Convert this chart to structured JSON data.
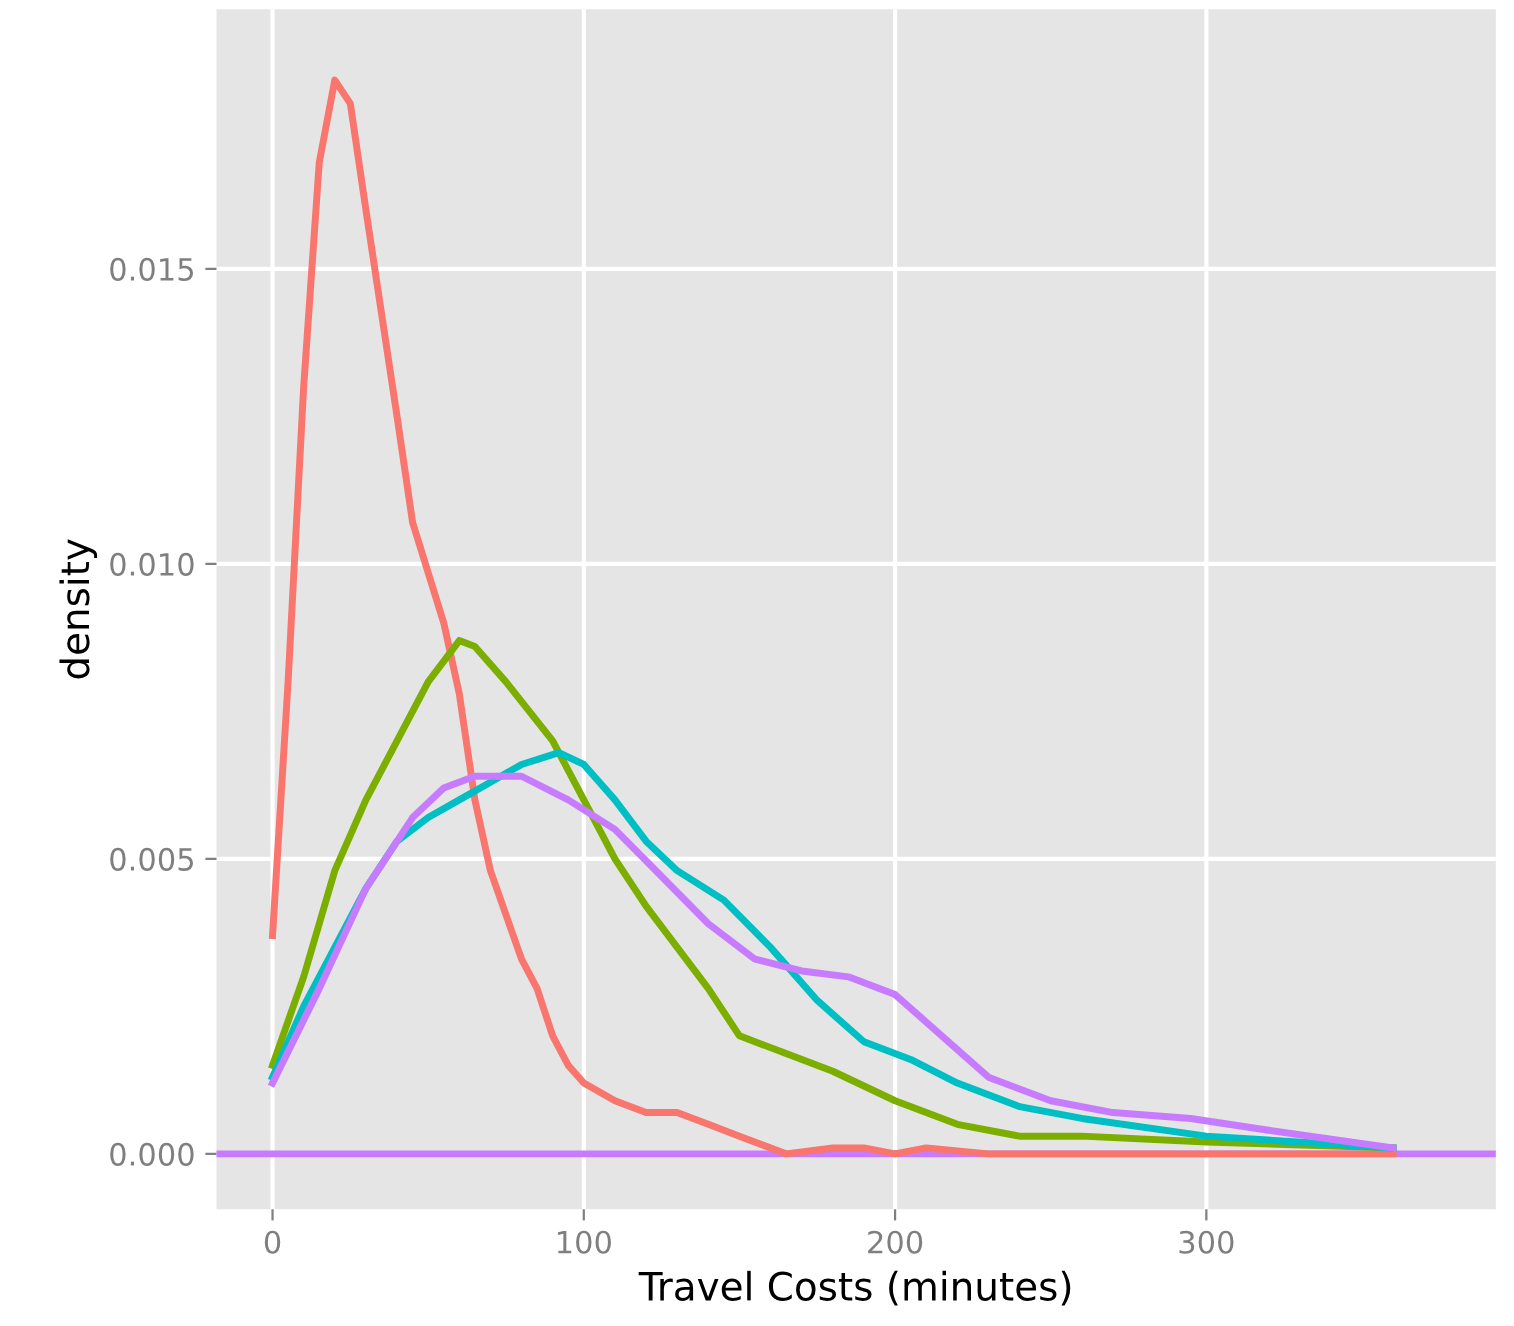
{
  "chart_data": {
    "type": "line",
    "xlabel": "Travel Costs (minutes)",
    "ylabel": "density",
    "xlim": [
      -18,
      393
    ],
    "ylim": [
      -0.00094,
      0.0194
    ],
    "xticks": [
      0,
      100,
      200,
      300
    ],
    "yticks": [
      {
        "value": 0,
        "label": "0.000"
      },
      {
        "value": 0.005,
        "label": "0.005"
      },
      {
        "value": 0.01,
        "label": "0.010"
      },
      {
        "value": 0.015,
        "label": "0.015"
      }
    ],
    "grid": true,
    "line_style": "solid",
    "marker": "none",
    "ref_lines": [
      {
        "axis": "y",
        "value": 0,
        "color": "#c77cff"
      }
    ],
    "series": [
      {
        "color": "#f8766d",
        "x": [
          0,
          5,
          10,
          15,
          20,
          25,
          30,
          40,
          45,
          55,
          60,
          65,
          70,
          80,
          85,
          90,
          95,
          100,
          110,
          120,
          130,
          140,
          150,
          165,
          180,
          190,
          200,
          210,
          230,
          250,
          300,
          360
        ],
        "values": [
          0.0037,
          0.008,
          0.013,
          0.0168,
          0.0182,
          0.0178,
          0.016,
          0.0125,
          0.0107,
          0.009,
          0.0078,
          0.006,
          0.0048,
          0.0033,
          0.0028,
          0.002,
          0.0015,
          0.0012,
          0.0009,
          0.0007,
          0.0007,
          0.0005,
          0.0003,
          0,
          0.0001,
          0.0001,
          0,
          0.0001,
          0,
          0,
          0,
          0
        ]
      },
      {
        "color": "#7cae00",
        "x": [
          0,
          10,
          20,
          30,
          40,
          50,
          60,
          65,
          75,
          90,
          100,
          110,
          120,
          130,
          140,
          150,
          165,
          180,
          200,
          220,
          240,
          260,
          300,
          360
        ],
        "values": [
          0.0015,
          0.003,
          0.0048,
          0.006,
          0.007,
          0.008,
          0.0087,
          0.0086,
          0.008,
          0.007,
          0.006,
          0.005,
          0.0042,
          0.0035,
          0.0028,
          0.002,
          0.0017,
          0.0014,
          0.0009,
          0.0005,
          0.0003,
          0.0003,
          0.0002,
          0.0001
        ]
      },
      {
        "color": "#00bfc4",
        "x": [
          0,
          10,
          20,
          30,
          40,
          50,
          60,
          70,
          80,
          92,
          100,
          110,
          120,
          130,
          145,
          160,
          175,
          190,
          205,
          220,
          240,
          260,
          300,
          360
        ],
        "values": [
          0.0013,
          0.0025,
          0.0035,
          0.0045,
          0.0053,
          0.0057,
          0.006,
          0.0063,
          0.0066,
          0.0068,
          0.0066,
          0.006,
          0.0053,
          0.0048,
          0.0043,
          0.0035,
          0.0026,
          0.0019,
          0.0016,
          0.0012,
          0.0008,
          0.0006,
          0.0003,
          0.0001
        ]
      },
      {
        "color": "#c77cff",
        "x": [
          0,
          15,
          30,
          45,
          55,
          65,
          80,
          95,
          110,
          125,
          140,
          155,
          170,
          185,
          200,
          215,
          230,
          250,
          270,
          295,
          320,
          360
        ],
        "values": [
          0.0012,
          0.0028,
          0.0045,
          0.0057,
          0.0062,
          0.0064,
          0.0064,
          0.006,
          0.0055,
          0.0047,
          0.0039,
          0.0033,
          0.0031,
          0.003,
          0.0027,
          0.002,
          0.0013,
          0.0009,
          0.0007,
          0.0006,
          0.0004,
          0.0001
        ]
      }
    ]
  }
}
